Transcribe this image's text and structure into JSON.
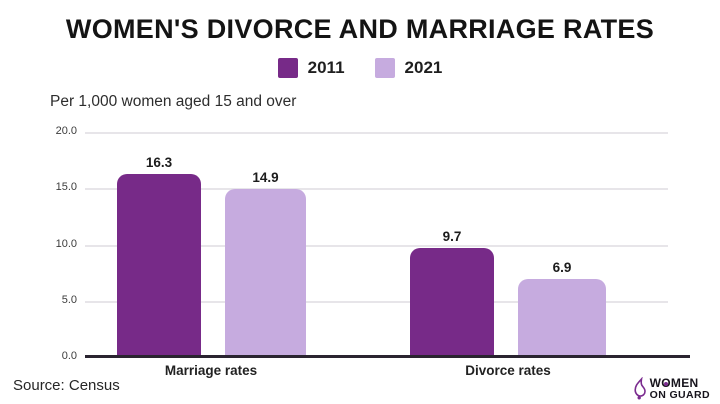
{
  "header": {
    "title": "WOMEN'S DIVORCE AND MARRIAGE RATES"
  },
  "legend": [
    {
      "label": "2011",
      "color": "#772a88"
    },
    {
      "label": "2021",
      "color": "#c6abdf"
    }
  ],
  "subtitle": "Per 1,000 women aged 15 and over",
  "chart_data": {
    "type": "bar",
    "title": "WOMEN'S DIVORCE AND MARRIAGE RATES",
    "subtitle": "Per 1,000 women aged 15 and over",
    "categories": [
      "Marriage rates",
      "Divorce rates"
    ],
    "series": [
      {
        "name": "2011",
        "color": "#772a88",
        "values": [
          16.3,
          9.7
        ]
      },
      {
        "name": "2021",
        "color": "#c6abdf",
        "values": [
          14.9,
          6.9
        ]
      }
    ],
    "xlabel": "",
    "ylabel": "Per 1,000 women aged 15 and over",
    "ylim": [
      0,
      20
    ],
    "yticks": [
      "20.0",
      "15.0",
      "10.0",
      "5.0",
      "0.0"
    ],
    "grid": true,
    "legend_position": "top"
  },
  "colors": {
    "accent_dark": "#772a88",
    "accent_light": "#c6abdf",
    "axis": "#2a2430",
    "gridline": "#e7e5e9",
    "background": "#ffffff"
  },
  "footer": {
    "source": "Source: Census",
    "logo": {
      "line1_parts": [
        "W",
        "O",
        "MEN"
      ],
      "line2": "ON GUARD"
    }
  }
}
